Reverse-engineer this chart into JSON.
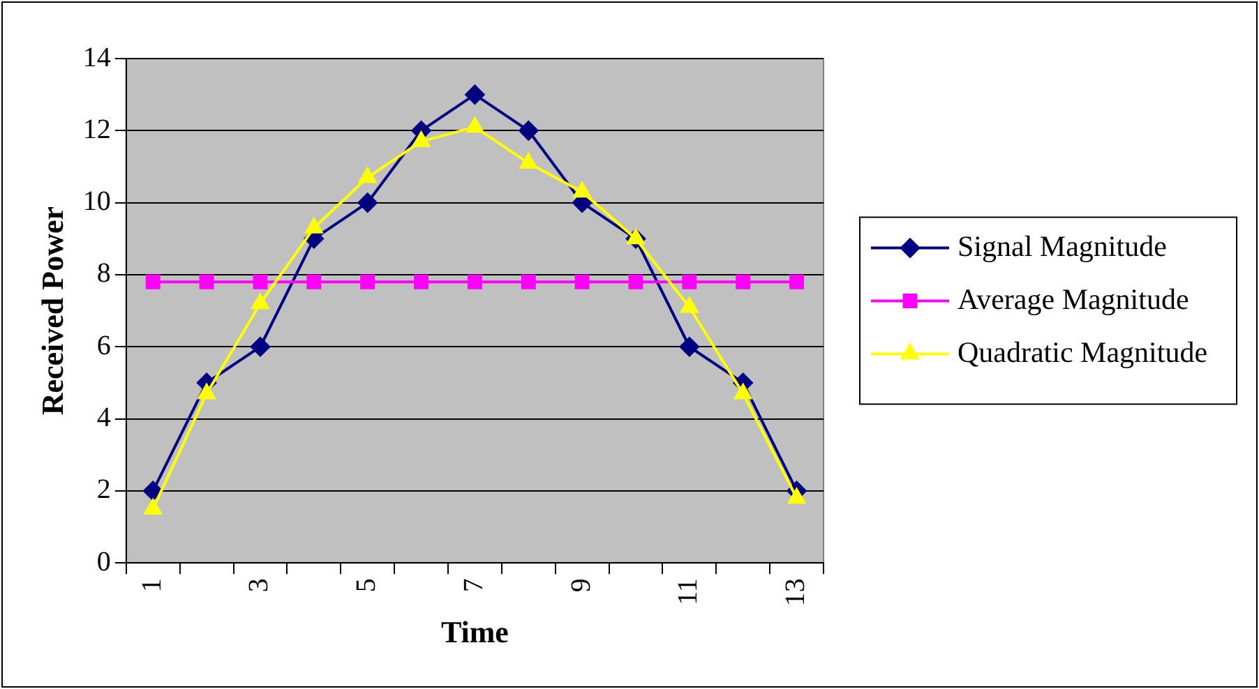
{
  "chart_data": {
    "type": "line",
    "xlabel": "Time",
    "ylabel": "Received Power",
    "categories": [
      "1",
      null,
      "3",
      null,
      "5",
      null,
      "7",
      null,
      "9",
      null,
      "11",
      null,
      "13"
    ],
    "series": [
      {
        "name": "Signal Magnitude",
        "color": "#000080",
        "marker": "diamond",
        "values": [
          2,
          5,
          6,
          9,
          10,
          12,
          13,
          12,
          10,
          9,
          6,
          5,
          2
        ]
      },
      {
        "name": "Average Magnitude",
        "color": "#ff00ff",
        "marker": "square",
        "values": [
          7.8,
          7.8,
          7.8,
          7.8,
          7.8,
          7.8,
          7.8,
          7.8,
          7.8,
          7.8,
          7.8,
          7.8,
          7.8
        ]
      },
      {
        "name": "Quadratic Magnitude",
        "color": "#ffff00",
        "marker": "triangle",
        "values": [
          1.5,
          4.7,
          7.2,
          9.3,
          10.7,
          11.7,
          12.1,
          11.1,
          10.3,
          9.0,
          7.1,
          4.7,
          1.8
        ]
      }
    ],
    "ylim": [
      0,
      14
    ],
    "yticks": [
      0,
      2,
      4,
      6,
      8,
      10,
      12,
      14
    ],
    "grid": "y",
    "legend": "right"
  }
}
